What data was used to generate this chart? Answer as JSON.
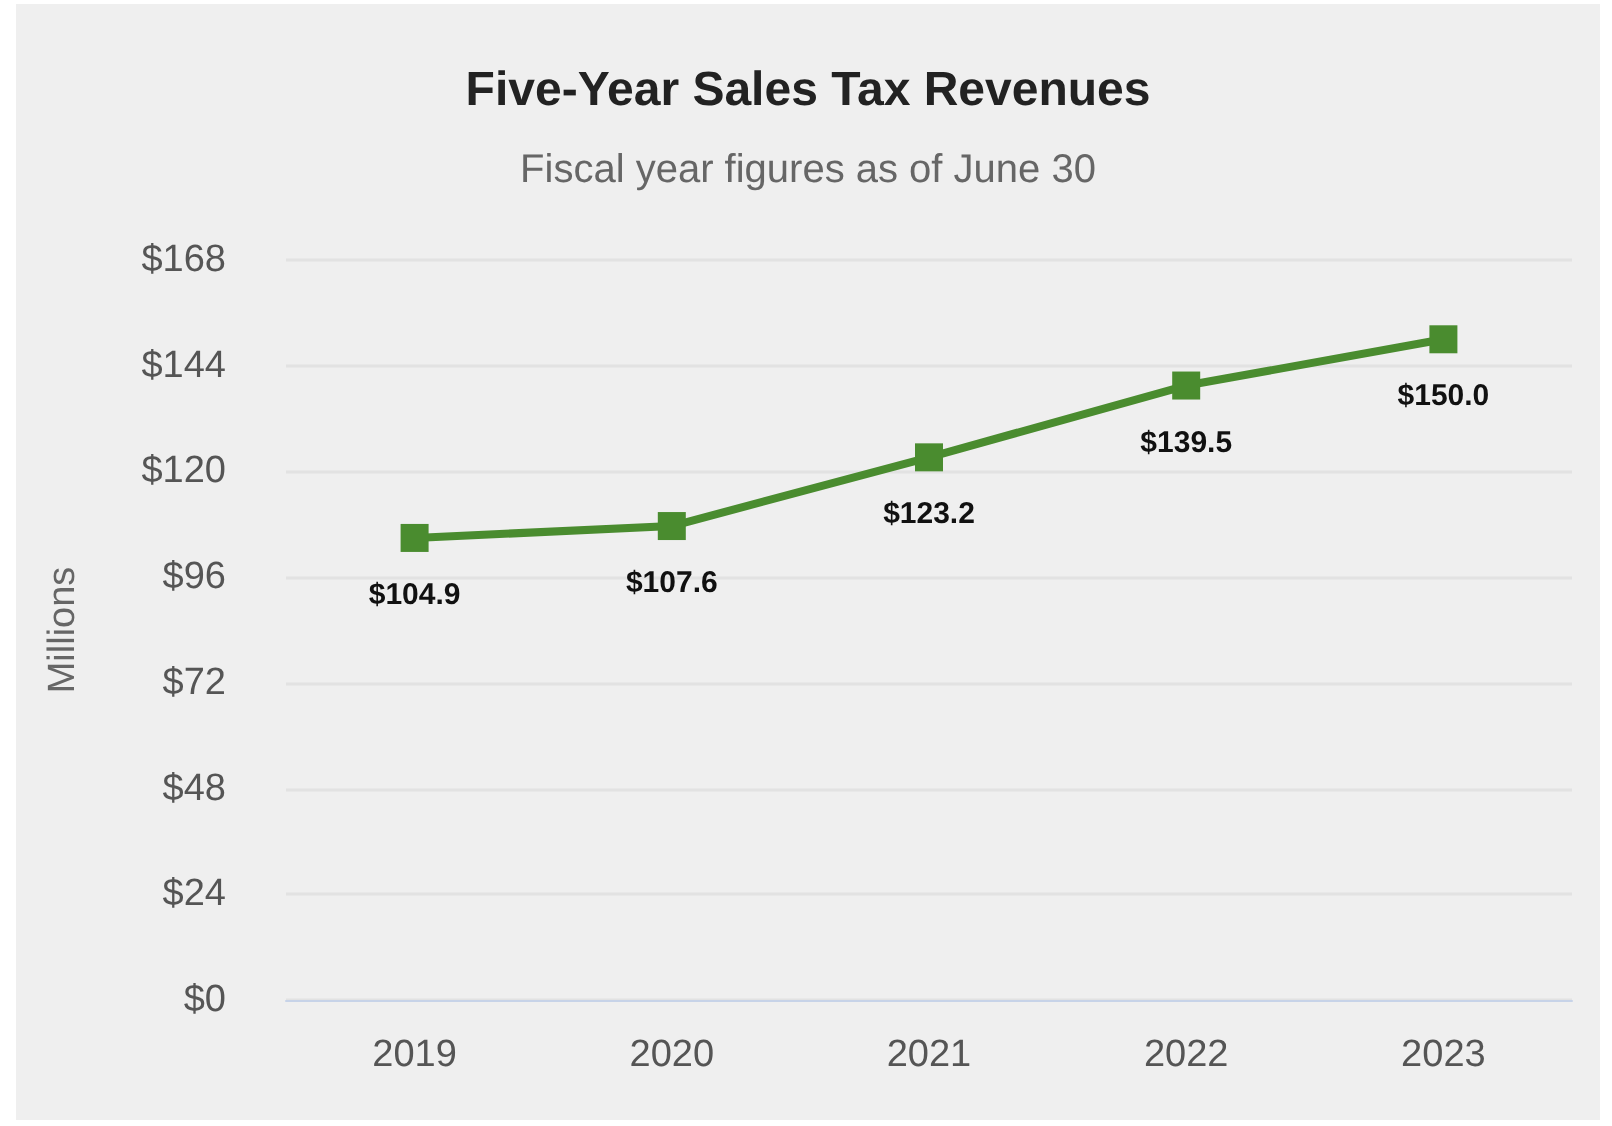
{
  "chart_data": {
    "type": "line",
    "title": "Five-Year Sales Tax Revenues",
    "subtitle": "Fiscal year figures as of June 30",
    "ylabel": "Millions",
    "categories": [
      "2019",
      "2020",
      "2021",
      "2022",
      "2023"
    ],
    "series": [
      {
        "color": "#4a8c2f",
        "values": [
          104.9,
          107.6,
          123.2,
          139.5,
          150.0
        ],
        "value_labels": [
          "$104.9",
          "$107.6",
          "$123.2",
          "$139.5",
          "$150.0"
        ]
      }
    ],
    "ylim": [
      0,
      168
    ],
    "yticks": [
      {
        "value": 0,
        "label": "$0"
      },
      {
        "value": 24,
        "label": "$24"
      },
      {
        "value": 48,
        "label": "$48"
      },
      {
        "value": 72,
        "label": "$72"
      },
      {
        "value": 96,
        "label": "$96"
      },
      {
        "value": 120,
        "label": "$120"
      },
      {
        "value": 144,
        "label": "$144"
      },
      {
        "value": 168,
        "label": "$168"
      }
    ],
    "grid": "y",
    "marker": "square",
    "line_style": "solid"
  }
}
